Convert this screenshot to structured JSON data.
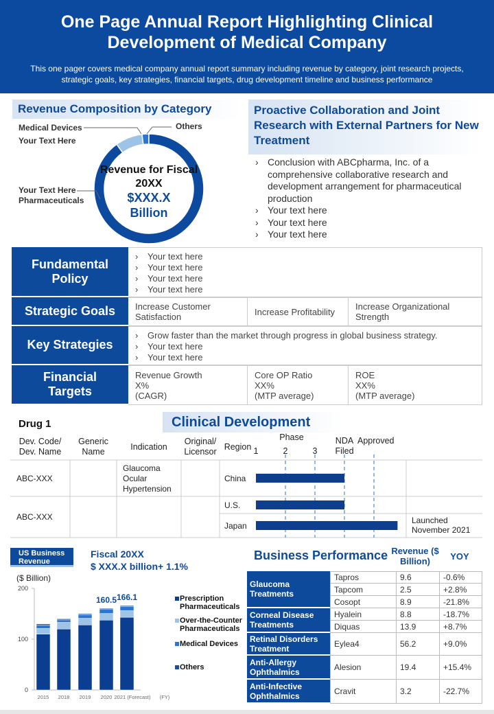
{
  "header": {
    "title": "One Page Annual Report Highlighting Clinical Development of Medical Company",
    "subtitle": "This one pager covers medical company annual report summary including revenue  by category, joint research projects, strategic goals, key strategies, financial targets, drug development  timeline and business performance"
  },
  "chart_data": [
    {
      "type": "donut",
      "title": "Revenue Composition by Category",
      "categories": [
        "Pharmaceuticals",
        "Medical Devices",
        "Others"
      ],
      "notes": [
        "Your Text Here",
        "Your Text Here",
        null
      ],
      "values": [
        90,
        8,
        2
      ],
      "colors": [
        "#0b4a9e",
        "#9dc3e6",
        "#2e75d0"
      ],
      "center_text": [
        "Revenue for Fiscal 20XX",
        "$XXX.X",
        "Billion"
      ]
    },
    {
      "type": "bar",
      "stacked": true,
      "title": "US Business Revenue",
      "subtitle": [
        "Fiscal 20XX",
        "$ XXX.X billion+ 1.1%"
      ],
      "y_label": "($ Billion)",
      "x_unit": "(FY)",
      "categories": [
        "2015",
        "2018",
        "2019",
        "2020",
        "2021 (Forecast)"
      ],
      "series": [
        {
          "name": "Prescription Pharmaceuticals",
          "color": "#0b3d91",
          "values": [
            110,
            120,
            128,
            137.5,
            143.1
          ]
        },
        {
          "name": "Over-the-Counter Pharmaceuticals",
          "color": "#9dc3e6",
          "values": [
            11,
            13,
            13,
            13,
            13
          ]
        },
        {
          "name": "Medical Devices",
          "color": "#2e75d0",
          "values": [
            7,
            5,
            7,
            8,
            8
          ]
        },
        {
          "name": "Others",
          "color": "#1a4f9e",
          "values": [
            2,
            2,
            2,
            2,
            2
          ]
        }
      ],
      "totals": [
        null,
        null,
        null,
        160.5,
        166.1
      ],
      "ylim": [
        0,
        200
      ],
      "yticks": [
        0,
        100,
        200
      ]
    }
  ],
  "collaboration": {
    "title": "Proactive Collaboration and Joint Research with External Partners for New Treatment",
    "bullets": [
      "Conclusion with ABCpharma, Inc. of a comprehensive collaborative research and development arrangement for pharmaceutical production",
      "Your text here",
      "Your text here",
      "Your text here"
    ]
  },
  "policy": {
    "rows": [
      {
        "label": "Fundamental Policy",
        "bullets": [
          "Your text here",
          "Your text here",
          "Your text here",
          "Your text here"
        ]
      },
      {
        "label": "Strategic Goals",
        "cells": [
          [
            "Increase Customer Satisfaction"
          ],
          [
            "Increase Profitability"
          ],
          [
            "Increase Organizational Strength"
          ]
        ]
      },
      {
        "label": "Key Strategies",
        "bullets": [
          "Grow faster than the market through progress  in global business strategy.",
          "Your text here",
          "Your text here"
        ]
      },
      {
        "label": "Financial Targets",
        "cells": [
          [
            "Revenue  Growth",
            "X%",
            "(CAGR)"
          ],
          [
            "Core OP Ratio",
            "XX%",
            "(MTP average)"
          ],
          [
            "ROE",
            "XX%",
            "(MTP average)"
          ]
        ]
      }
    ]
  },
  "clinical": {
    "drug": "Drug 1",
    "title": "Clinical Development",
    "headers": [
      "Dev. Code/ Dev. Name",
      "Generic Name",
      "Indication",
      "Original/ Licensor",
      "Region"
    ],
    "phase_label": "Phase",
    "xticks": [
      1,
      2,
      3,
      {
        "value": 4,
        "label": "NDA Filed"
      },
      {
        "value": 5,
        "label": "Approved"
      }
    ],
    "rows": [
      {
        "code": "ABC-XXX",
        "indication": "Glaucoma Ocular Hypertension",
        "regions": [
          {
            "name": "China",
            "progress": 4
          }
        ]
      },
      {
        "code": "ABC-XXX",
        "regions": [
          {
            "name": "U.S.",
            "progress": 4
          },
          {
            "name": "Japan",
            "progress": 5.8,
            "note": "Launched November 2021"
          }
        ]
      }
    ]
  },
  "business": {
    "title": "Business Performance",
    "columns": [
      "Revenue ($ Billion)",
      "YOY"
    ],
    "groups": [
      {
        "name": "Glaucoma Treatments",
        "rows": [
          [
            "Tapros",
            9.6,
            "-0.6%"
          ],
          [
            "Tapcom",
            2.5,
            "+2.8%"
          ],
          [
            "Cosopt",
            8.9,
            "-21.8%"
          ]
        ]
      },
      {
        "name": "Corneal Disease Treatments",
        "rows": [
          [
            "Hyalein",
            8.8,
            "-18.7%"
          ],
          [
            "Diquas",
            13.9,
            "+8.7%"
          ]
        ]
      },
      {
        "name": "Retinal Disorders Treatment",
        "rows": [
          [
            "Eylea4",
            56.2,
            "+9.0%"
          ]
        ]
      },
      {
        "name": "Anti-Allergy Ophthalmics",
        "rows": [
          [
            "Alesion",
            19.4,
            "+15.4%"
          ]
        ]
      },
      {
        "name": "Anti-Infective Ophthalmics",
        "rows": [
          [
            "Cravit",
            3.2,
            "-22.7%"
          ]
        ]
      }
    ]
  }
}
